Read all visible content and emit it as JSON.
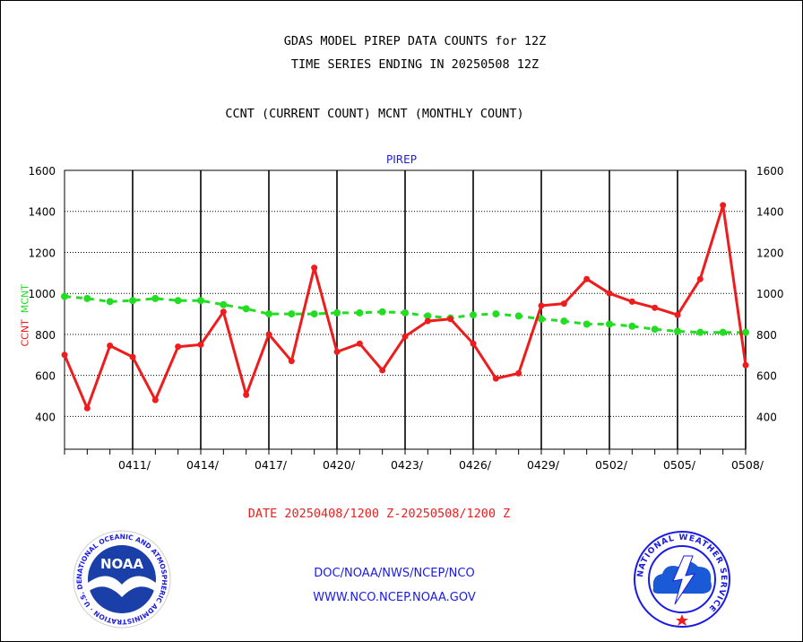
{
  "header": {
    "line1": "GDAS MODEL PIREP DATA COUNTS for 12Z",
    "line2": "TIME SERIES ENDING IN 20250508 12Z",
    "line3": "CCNT (CURRENT COUNT) MCNT (MONTHLY COUNT)"
  },
  "footer": {
    "date_range": "DATE 20250408/1200 Z-20250508/1200 Z",
    "link1": "DOC/NOAA/NWS/NCEP/NCO",
    "link2": "WWW.NCO.NCEP.NOAA.GOV"
  },
  "logos": {
    "noaa_text": "NOAA",
    "noaa_ring": "NATIONAL OCEANIC AND ATMOSPHERIC ADMINISTRATION · U.S. DEPARTMENT OF COMMERCE",
    "nws_ring": "NATIONAL WEATHER SERVICE"
  },
  "colors": {
    "ccnt": "#ee1c1c",
    "mcnt": "#22dd22",
    "title_blue": "#1a1ae6"
  },
  "chart_data": {
    "type": "line",
    "title": "PIREP",
    "ylabel_ccnt": "CCNT",
    "ylabel_mcnt": "MCNT",
    "ylim": [
      240,
      1600
    ],
    "yticks": [
      400,
      600,
      800,
      1000,
      1200,
      1400,
      1600
    ],
    "xticks": [
      "0411/",
      "0414/",
      "0417/",
      "0420/",
      "0423/",
      "0426/",
      "0429/",
      "0502/",
      "0505/",
      "0508/"
    ],
    "grid": true,
    "x": [
      0,
      1,
      2,
      3,
      4,
      5,
      6,
      7,
      8,
      9,
      10,
      11,
      12,
      13,
      14,
      15,
      16,
      17,
      18,
      19,
      20,
      21,
      22,
      23,
      24,
      25,
      26,
      27,
      28,
      29,
      30
    ],
    "series": [
      {
        "name": "CCNT",
        "values": [
          700,
          440,
          745,
          690,
          480,
          740,
          750,
          910,
          505,
          800,
          670,
          1125,
          715,
          755,
          625,
          790,
          865,
          875,
          755,
          585,
          610,
          940,
          950,
          1070,
          1000,
          960,
          930,
          895,
          1070,
          1430,
          650
        ]
      },
      {
        "name": "MCNT",
        "values": [
          985,
          975,
          960,
          965,
          975,
          965,
          965,
          945,
          925,
          900,
          900,
          900,
          905,
          905,
          910,
          905,
          890,
          880,
          895,
          900,
          890,
          875,
          865,
          850,
          850,
          840,
          825,
          815,
          810,
          810,
          810
        ]
      }
    ]
  }
}
